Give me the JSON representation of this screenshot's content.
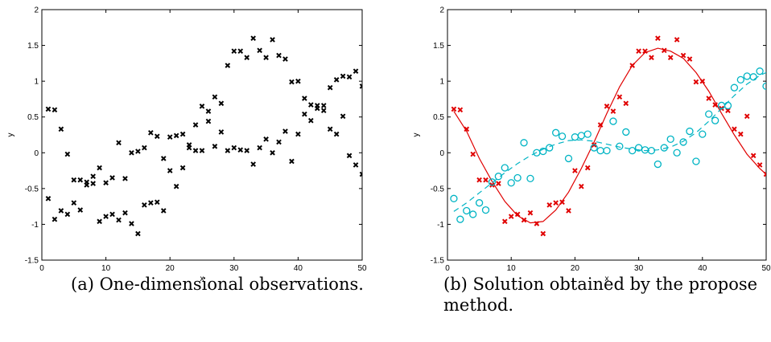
{
  "captions": [
    "(a) One-dimensional observations.",
    "(b) Solution obtained by the propose",
    "method."
  ],
  "colors": {
    "observations": "#000000",
    "series_red": "#e00000",
    "series_cyan": "#00b4c4"
  },
  "chart_data": [
    {
      "type": "scatter",
      "title": "",
      "xlabel": "x",
      "ylabel": "y",
      "xlim": [
        0,
        50
      ],
      "ylim": [
        -1.5,
        2
      ],
      "xticks": [
        0,
        10,
        20,
        30,
        40,
        50
      ],
      "yticks": [
        -1.5,
        -1,
        -0.5,
        0,
        0.5,
        1,
        1.5,
        2
      ],
      "marker": "x",
      "series": [
        {
          "points": [
            [
              1,
              0.61
            ],
            [
              1,
              -0.64
            ],
            [
              2,
              0.6
            ],
            [
              2,
              -0.93
            ],
            [
              3,
              0.33
            ],
            [
              3,
              -0.81
            ],
            [
              4,
              -0.02
            ],
            [
              4,
              -0.86
            ],
            [
              5,
              -0.38
            ],
            [
              5,
              -0.7
            ],
            [
              6,
              -0.38
            ],
            [
              6,
              -0.8
            ],
            [
              7,
              -0.41
            ],
            [
              7,
              -0.45
            ],
            [
              8,
              -0.33
            ],
            [
              8,
              -0.43
            ],
            [
              9,
              -0.21
            ],
            [
              9,
              -0.96
            ],
            [
              10,
              -0.42
            ],
            [
              10,
              -0.89
            ],
            [
              11,
              -0.35
            ],
            [
              11,
              -0.86
            ],
            [
              12,
              0.14
            ],
            [
              12,
              -0.94
            ],
            [
              13,
              -0.36
            ],
            [
              13,
              -0.84
            ],
            [
              14,
              0.0
            ],
            [
              14,
              -0.99
            ],
            [
              15,
              0.02
            ],
            [
              15,
              -1.13
            ],
            [
              16,
              0.07
            ],
            [
              16,
              -0.73
            ],
            [
              17,
              0.28
            ],
            [
              17,
              -0.7
            ],
            [
              18,
              0.23
            ],
            [
              18,
              -0.69
            ],
            [
              19,
              -0.08
            ],
            [
              19,
              -0.81
            ],
            [
              20,
              0.22
            ],
            [
              20,
              -0.25
            ],
            [
              21,
              0.24
            ],
            [
              21,
              -0.47
            ],
            [
              22,
              0.26
            ],
            [
              22,
              -0.21
            ],
            [
              23,
              0.07
            ],
            [
              23,
              0.11
            ],
            [
              24,
              0.03
            ],
            [
              24,
              0.39
            ],
            [
              25,
              0.65
            ],
            [
              25,
              0.03
            ],
            [
              26,
              0.58
            ],
            [
              26,
              0.44
            ],
            [
              27,
              0.78
            ],
            [
              27,
              0.09
            ],
            [
              28,
              0.69
            ],
            [
              28,
              0.29
            ],
            [
              29,
              1.22
            ],
            [
              29,
              0.03
            ],
            [
              30,
              1.42
            ],
            [
              30,
              0.07
            ],
            [
              31,
              1.42
            ],
            [
              31,
              0.04
            ],
            [
              32,
              1.33
            ],
            [
              32,
              0.03
            ],
            [
              33,
              1.6
            ],
            [
              33,
              -0.16
            ],
            [
              34,
              1.43
            ],
            [
              34,
              0.07
            ],
            [
              35,
              1.33
            ],
            [
              35,
              0.19
            ],
            [
              36,
              1.58
            ],
            [
              36,
              0.0
            ],
            [
              37,
              1.36
            ],
            [
              37,
              0.15
            ],
            [
              38,
              1.31
            ],
            [
              38,
              0.3
            ],
            [
              39,
              0.99
            ],
            [
              39,
              -0.12
            ],
            [
              40,
              1.0
            ],
            [
              40,
              0.26
            ],
            [
              41,
              0.54
            ],
            [
              41,
              0.76
            ],
            [
              42,
              0.67
            ],
            [
              42,
              0.45
            ],
            [
              43,
              0.66
            ],
            [
              43,
              0.62
            ],
            [
              44,
              0.66
            ],
            [
              44,
              0.59
            ],
            [
              45,
              0.91
            ],
            [
              45,
              0.33
            ],
            [
              46,
              1.02
            ],
            [
              46,
              0.26
            ],
            [
              47,
              1.07
            ],
            [
              47,
              0.51
            ],
            [
              48,
              1.06
            ],
            [
              48,
              -0.04
            ],
            [
              49,
              1.14
            ],
            [
              49,
              -0.17
            ],
            [
              50,
              0.93
            ],
            [
              50,
              -0.3
            ]
          ]
        }
      ]
    },
    {
      "type": "scatter",
      "title": "",
      "xlabel": "x",
      "ylabel": "y",
      "xlim": [
        0,
        50
      ],
      "ylim": [
        -1.5,
        2
      ],
      "xticks": [
        0,
        10,
        20,
        30,
        40,
        50
      ],
      "yticks": [
        -1.5,
        -1,
        -0.5,
        0,
        0.5,
        1,
        1.5,
        2
      ],
      "series": [
        {
          "marker": "x",
          "color": "#e00000",
          "line": "solid",
          "points": [
            [
              1,
              0.61
            ],
            [
              2,
              0.6
            ],
            [
              3,
              0.33
            ],
            [
              4,
              -0.02
            ],
            [
              5,
              -0.38
            ],
            [
              6,
              -0.38
            ],
            [
              7,
              -0.45
            ],
            [
              8,
              -0.43
            ],
            [
              9,
              -0.96
            ],
            [
              10,
              -0.89
            ],
            [
              11,
              -0.86
            ],
            [
              12,
              -0.94
            ],
            [
              13,
              -0.84
            ],
            [
              14,
              -0.99
            ],
            [
              15,
              -1.13
            ],
            [
              16,
              -0.73
            ],
            [
              17,
              -0.7
            ],
            [
              18,
              -0.69
            ],
            [
              19,
              -0.81
            ],
            [
              20,
              -0.25
            ],
            [
              21,
              -0.47
            ],
            [
              22,
              -0.21
            ],
            [
              23,
              0.11
            ],
            [
              24,
              0.39
            ],
            [
              25,
              0.65
            ],
            [
              26,
              0.58
            ],
            [
              27,
              0.78
            ],
            [
              28,
              0.69
            ],
            [
              29,
              1.22
            ],
            [
              30,
              1.42
            ],
            [
              31,
              1.42
            ],
            [
              32,
              1.33
            ],
            [
              33,
              1.6
            ],
            [
              34,
              1.43
            ],
            [
              35,
              1.33
            ],
            [
              36,
              1.58
            ],
            [
              37,
              1.36
            ],
            [
              38,
              1.31
            ],
            [
              39,
              0.99
            ],
            [
              40,
              1.0
            ],
            [
              41,
              0.76
            ],
            [
              42,
              0.67
            ],
            [
              43,
              0.62
            ],
            [
              44,
              0.59
            ],
            [
              45,
              0.33
            ],
            [
              46,
              0.26
            ],
            [
              47,
              0.51
            ],
            [
              48,
              -0.04
            ],
            [
              49,
              -0.17
            ],
            [
              50,
              -0.3
            ]
          ],
          "curve": [
            [
              1,
              0.58
            ],
            [
              3,
              0.3
            ],
            [
              5,
              -0.08
            ],
            [
              7,
              -0.4
            ],
            [
              9,
              -0.68
            ],
            [
              11,
              -0.88
            ],
            [
              13,
              -0.98
            ],
            [
              15,
              -0.96
            ],
            [
              17,
              -0.8
            ],
            [
              19,
              -0.55
            ],
            [
              21,
              -0.22
            ],
            [
              23,
              0.15
            ],
            [
              25,
              0.55
            ],
            [
              27,
              0.92
            ],
            [
              29,
              1.22
            ],
            [
              31,
              1.4
            ],
            [
              33,
              1.46
            ],
            [
              35,
              1.42
            ],
            [
              37,
              1.32
            ],
            [
              39,
              1.12
            ],
            [
              41,
              0.86
            ],
            [
              43,
              0.55
            ],
            [
              45,
              0.25
            ],
            [
              47,
              -0.02
            ],
            [
              49,
              -0.22
            ],
            [
              50,
              -0.3
            ]
          ]
        },
        {
          "marker": "o",
          "color": "#00b4c4",
          "line": "dashed",
          "points": [
            [
              1,
              -0.64
            ],
            [
              2,
              -0.93
            ],
            [
              3,
              -0.81
            ],
            [
              4,
              -0.86
            ],
            [
              5,
              -0.7
            ],
            [
              6,
              -0.8
            ],
            [
              7,
              -0.41
            ],
            [
              8,
              -0.33
            ],
            [
              9,
              -0.21
            ],
            [
              10,
              -0.42
            ],
            [
              11,
              -0.35
            ],
            [
              12,
              0.14
            ],
            [
              13,
              -0.36
            ],
            [
              14,
              0.0
            ],
            [
              15,
              0.02
            ],
            [
              16,
              0.07
            ],
            [
              17,
              0.28
            ],
            [
              18,
              0.23
            ],
            [
              19,
              -0.08
            ],
            [
              20,
              0.22
            ],
            [
              21,
              0.24
            ],
            [
              22,
              0.26
            ],
            [
              23,
              0.07
            ],
            [
              24,
              0.03
            ],
            [
              25,
              0.03
            ],
            [
              26,
              0.44
            ],
            [
              27,
              0.09
            ],
            [
              28,
              0.29
            ],
            [
              29,
              0.03
            ],
            [
              30,
              0.07
            ],
            [
              31,
              0.04
            ],
            [
              32,
              0.03
            ],
            [
              33,
              -0.16
            ],
            [
              34,
              0.07
            ],
            [
              35,
              0.19
            ],
            [
              36,
              0.0
            ],
            [
              37,
              0.15
            ],
            [
              38,
              0.3
            ],
            [
              39,
              -0.12
            ],
            [
              40,
              0.26
            ],
            [
              41,
              0.54
            ],
            [
              42,
              0.45
            ],
            [
              43,
              0.66
            ],
            [
              44,
              0.66
            ],
            [
              45,
              0.91
            ],
            [
              46,
              1.02
            ],
            [
              47,
              1.07
            ],
            [
              48,
              1.06
            ],
            [
              49,
              1.14
            ],
            [
              50,
              0.93
            ]
          ],
          "curve": [
            [
              1,
              -0.82
            ],
            [
              3,
              -0.7
            ],
            [
              5,
              -0.56
            ],
            [
              7,
              -0.42
            ],
            [
              9,
              -0.28
            ],
            [
              11,
              -0.15
            ],
            [
              13,
              -0.04
            ],
            [
              15,
              0.05
            ],
            [
              17,
              0.12
            ],
            [
              19,
              0.17
            ],
            [
              21,
              0.18
            ],
            [
              23,
              0.16
            ],
            [
              25,
              0.12
            ],
            [
              27,
              0.08
            ],
            [
              29,
              0.05
            ],
            [
              31,
              0.03
            ],
            [
              33,
              0.04
            ],
            [
              35,
              0.08
            ],
            [
              37,
              0.16
            ],
            [
              39,
              0.28
            ],
            [
              41,
              0.44
            ],
            [
              43,
              0.62
            ],
            [
              45,
              0.8
            ],
            [
              47,
              0.96
            ],
            [
              49,
              1.08
            ],
            [
              50,
              1.12
            ]
          ]
        }
      ]
    }
  ]
}
